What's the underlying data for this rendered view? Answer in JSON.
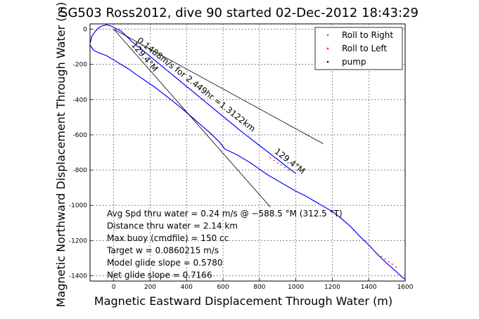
{
  "chart_data": {
    "type": "line",
    "title": "SG503 Ross2012, dive 90 started 02-Dec-2012 18:43:29",
    "xlabel": "Magnetic Eastward Displacement Through Water (m)",
    "ylabel": "Magnetic Northward Displacement Through Water (m)",
    "xlim": [
      -130,
      1600
    ],
    "ylim": [
      -1430,
      30
    ],
    "xticks": [
      0,
      200,
      400,
      600,
      800,
      1000,
      1200,
      1400,
      1600
    ],
    "yticks": [
      0,
      -200,
      -400,
      -600,
      -800,
      -1000,
      -1200,
      -1400
    ],
    "grid": true,
    "legend_position": "top-right",
    "legend": [
      {
        "name": "Roll to Right",
        "color": "#00cc00"
      },
      {
        "name": "Roll to Left",
        "color": "#ff0000"
      },
      {
        "name": "pump",
        "color": "#000000"
      }
    ],
    "series": [
      {
        "color": "#0000ff",
        "x": [
          -130,
          -110,
          -80,
          -40,
          0,
          40,
          80,
          120,
          170,
          220,
          270,
          320,
          380,
          430,
          480,
          530,
          580,
          610,
          640,
          680,
          720,
          760,
          800,
          850,
          900,
          950,
          1000,
          1050,
          1100,
          1150,
          1200,
          1250,
          1300,
          1350,
          1400,
          1450,
          1500,
          1550,
          1580,
          1600
        ],
        "y": [
          -90,
          -120,
          -135,
          -150,
          -175,
          -200,
          -225,
          -255,
          -290,
          -325,
          -365,
          -405,
          -455,
          -500,
          -545,
          -590,
          -640,
          -680,
          -695,
          -715,
          -740,
          -765,
          -795,
          -830,
          -860,
          -890,
          -920,
          -945,
          -975,
          -1005,
          -1035,
          -1075,
          -1120,
          -1175,
          -1225,
          -1280,
          -1330,
          -1375,
          -1405,
          -1420
        ]
      },
      {
        "color": "#0000ff",
        "x": [
          -130,
          -120,
          -100,
          -80,
          -60,
          -40,
          -20,
          0,
          20,
          40
        ],
        "y": [
          -80,
          -40,
          -10,
          10,
          20,
          25,
          20,
          10,
          0,
          -10
        ]
      },
      {
        "color": "#0000ff",
        "x": [
          40,
          100,
          200,
          300,
          400,
          500,
          600,
          700,
          800,
          900,
          1000
        ],
        "y": [
          -10,
          -70,
          -155,
          -240,
          -325,
          -410,
          -495,
          -580,
          -660,
          -740,
          -820
        ]
      },
      {
        "color": "#000000",
        "x": [
          0,
          1150
        ],
        "y": [
          0,
          -650
        ]
      },
      {
        "color": "#000000",
        "x": [
          0,
          860
        ],
        "y": [
          0,
          -1010
        ]
      }
    ],
    "markers": [
      {
        "series": "Roll to Left",
        "color": "#ff0000",
        "x": [
          1450,
          1470,
          1490,
          1510,
          1530,
          1550,
          860,
          880,
          900,
          920,
          940,
          960
        ]
      },
      {
        "series": "Roll to Left",
        "color": "#ff0000",
        "y": [
          -1280,
          -1290,
          -1305,
          -1320,
          -1335,
          -1350,
          -730,
          -745,
          -760,
          -770,
          -785,
          -800
        ]
      }
    ],
    "annotations": [
      {
        "text": "0.1488m/s for 2.449hr =1.3122km",
        "x": 125,
        "y": -70,
        "angle": 38
      },
      {
        "text": "129.4°M",
        "x": 95,
        "y": -90,
        "angle": 50
      },
      {
        "text": "129.4°M",
        "x": 880,
        "y": -700,
        "angle": 38
      }
    ],
    "stats": [
      "Avg Spd thru water =  0.24 m/s @ −588.5   °M (312.5 °T)",
      "Distance thru water =  2.14 km",
      "Max buoy (cmdfile) = 150 cc",
      "Target w = 0.0860215 m/s",
      "Model glide slope = 0.5780",
      "Net glide slope = 0.7166"
    ]
  }
}
